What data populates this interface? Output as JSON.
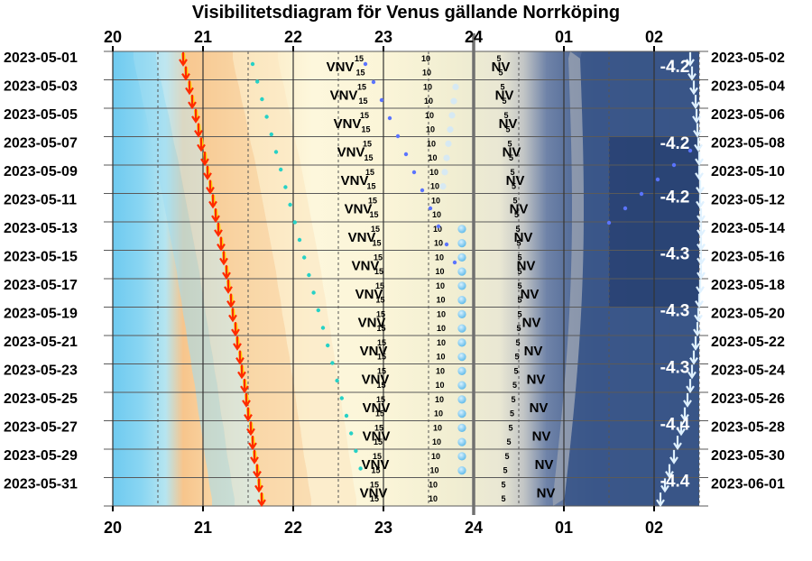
{
  "chart_data": {
    "type": "visibility-diagram",
    "title": "Visibilitetsdiagram för Venus gällande Norrköping",
    "x_hour_labels": [
      "20",
      "21",
      "22",
      "23",
      "24",
      "01",
      "02"
    ],
    "x_range_hours": [
      20,
      26.5
    ],
    "left_dates": [
      "2023-05-01",
      "2023-05-03",
      "2023-05-05",
      "2023-05-07",
      "2023-05-09",
      "2023-05-11",
      "2023-05-13",
      "2023-05-15",
      "2023-05-17",
      "2023-05-19",
      "2023-05-21",
      "2023-05-23",
      "2023-05-25",
      "2023-05-27",
      "2023-05-29",
      "2023-05-31"
    ],
    "right_dates": [
      "2023-05-02",
      "2023-05-04",
      "2023-05-06",
      "2023-05-08",
      "2023-05-10",
      "2023-05-12",
      "2023-05-14",
      "2023-05-16",
      "2023-05-18",
      "2023-05-20",
      "2023-05-22",
      "2023-05-24",
      "2023-05-26",
      "2023-05-28",
      "2023-05-30",
      "2023-06-01"
    ],
    "sunset_hours": [
      20.78,
      20.81,
      20.85,
      20.88,
      20.92,
      20.95,
      20.98,
      21.02,
      21.05,
      21.08,
      21.11,
      21.14,
      21.17,
      21.2,
      21.23,
      21.26,
      21.28,
      21.31,
      21.33,
      21.36,
      21.38,
      21.41,
      21.43,
      21.46,
      21.48,
      21.5,
      21.53,
      21.55,
      21.57,
      21.6,
      21.62,
      21.65
    ],
    "venus_set_hours": [
      26.4,
      26.42,
      26.44,
      26.46,
      26.47,
      26.48,
      26.49,
      26.5,
      26.5,
      26.51,
      26.51,
      26.52,
      26.52,
      26.52,
      26.52,
      26.52,
      26.51,
      26.5,
      26.49,
      26.48,
      26.46,
      26.44,
      26.42,
      26.4,
      26.37,
      26.34,
      26.3,
      26.26,
      26.22,
      26.17,
      26.12,
      26.07
    ],
    "altitude_markers": [
      {
        "label": "15",
        "hours": [
          22.73,
          22.76,
          22.79,
          22.82,
          22.85,
          22.88,
          22.91,
          22.94,
          22.96,
          22.97,
          22.98,
          22.98,
          22.97,
          22.95,
          22.93,
          22.9
        ]
      },
      {
        "label": "10",
        "hours": [
          23.47,
          23.49,
          23.51,
          23.53,
          23.56,
          23.58,
          23.6,
          23.62,
          23.63,
          23.64,
          23.64,
          23.63,
          23.62,
          23.6,
          23.58,
          23.55
        ]
      },
      {
        "label": "5",
        "hours": [
          24.28,
          24.32,
          24.36,
          24.4,
          24.43,
          24.46,
          24.49,
          24.51,
          24.51,
          24.51,
          24.49,
          24.47,
          24.44,
          24.41,
          24.37,
          24.33
        ]
      }
    ],
    "azimuth_labels": [
      {
        "label": "VNV",
        "hours": [
          22.52,
          22.56,
          22.6,
          22.64,
          22.68,
          22.72,
          22.76,
          22.8,
          22.84,
          22.87,
          22.89,
          22.91,
          22.92,
          22.92,
          22.91,
          22.89
        ]
      },
      {
        "label": "NV",
        "hours": [
          24.3,
          24.34,
          24.38,
          24.42,
          24.46,
          24.5,
          24.55,
          24.58,
          24.62,
          24.64,
          24.66,
          24.69,
          24.72,
          24.75,
          24.78,
          24.8
        ]
      }
    ],
    "magnitudes": [
      {
        "label": "-4.2",
        "date_index": 0
      },
      {
        "label": "-4.2",
        "date_index": 2.7
      },
      {
        "label": "-4.2",
        "date_index": 4.6
      },
      {
        "label": "-4.3",
        "date_index": 6.6
      },
      {
        "label": "-4.3",
        "date_index": 8.6
      },
      {
        "label": "-4.3",
        "date_index": 10.6
      },
      {
        "label": "-4.4",
        "date_index": 12.6
      },
      {
        "label": "-4.4",
        "date_index": 14.6
      }
    ],
    "colors": {
      "day": "#7dcff0",
      "civil": "#f6c48a",
      "nautical": "#fbf4d6",
      "astro": "#e7e6d2",
      "night": "#2f4c7e",
      "sunset_arrow": "#ff2a00",
      "venus_arrow": "#dff1ff",
      "midnight_line": "#707070",
      "dots": "#5b74ff"
    }
  }
}
